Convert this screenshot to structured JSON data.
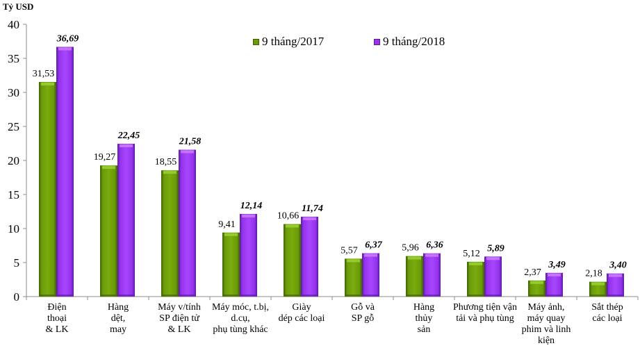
{
  "chart_data": {
    "type": "bar",
    "title": "",
    "ylabel": "Tỷ USD",
    "xlabel": "",
    "ylim": [
      0,
      40
    ],
    "yticks": [
      0,
      5,
      10,
      15,
      20,
      25,
      30,
      35,
      40
    ],
    "grid": false,
    "legend_position": "top-center-right",
    "categories": [
      [
        "Điện",
        "thoại",
        "& LK"
      ],
      [
        "Hàng",
        "dệt,",
        "may"
      ],
      [
        "Máy v/tính",
        "SP điện tử",
        "& LK"
      ],
      [
        "Máy móc, t.bị,",
        "d.cụ,",
        "phụ tùng khác"
      ],
      [
        "Giày",
        "dép các loại"
      ],
      [
        "Gỗ và",
        "SP gỗ"
      ],
      [
        "Hàng",
        "thủy",
        "sản"
      ],
      [
        "Phương tiện vận",
        "tải và phụ tùng"
      ],
      [
        "Máy ảnh,",
        "máy quay",
        "phim và linh",
        "kiện"
      ],
      [
        "Sắt thép",
        "các loại"
      ]
    ],
    "series": [
      {
        "name": "9 tháng/2017",
        "color": "#6a9a0a",
        "label_style": "normal",
        "values": [
          31.53,
          19.27,
          18.55,
          9.41,
          10.66,
          5.57,
          5.96,
          5.12,
          2.37,
          2.18
        ],
        "labels": [
          "31,53",
          "19,27",
          "18,55",
          "9,41",
          "10,66",
          "5,57",
          "5,96",
          "5,12",
          "2,37",
          "2,18"
        ]
      },
      {
        "name": "9 tháng/2018",
        "color": "#9b30f0",
        "label_style": "bold-italic",
        "values": [
          36.69,
          22.45,
          21.58,
          12.14,
          11.74,
          6.37,
          6.36,
          5.89,
          3.49,
          3.4
        ],
        "labels": [
          "36,69",
          "22,45",
          "21,58",
          "12,14",
          "11,74",
          "6,37",
          "6,36",
          "5,89",
          "3,49",
          "3,40"
        ]
      }
    ]
  },
  "unit_label": "Tỷ USD",
  "legend": [
    {
      "label": "9 tháng/2017",
      "color": "#6a9a0a"
    },
    {
      "label": "9 tháng/2018",
      "color": "#9b30f0"
    }
  ]
}
